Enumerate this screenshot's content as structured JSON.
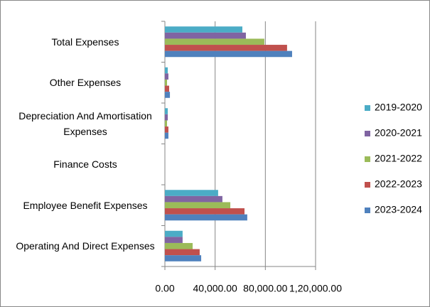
{
  "chart_data": {
    "type": "bar",
    "orientation": "horizontal",
    "categories": [
      "Total Expenses",
      "Other Expenses",
      "Depreciation And Amortisation Expenses",
      "Finance Costs",
      "Employee Benefit Expenses",
      "Operating And Direct Expenses"
    ],
    "series": [
      {
        "name": "2019-2020",
        "color": "#4bacc6",
        "values": [
          61700,
          2300,
          2300,
          0,
          42400,
          14100
        ]
      },
      {
        "name": "2020-2021",
        "color": "#8064a2",
        "values": [
          64500,
          2800,
          2300,
          0,
          45800,
          14100
        ]
      },
      {
        "name": "2021-2022",
        "color": "#9bbb59",
        "values": [
          79200,
          1700,
          1700,
          0,
          52100,
          22100
        ]
      },
      {
        "name": "2022-2023",
        "color": "#c0504d",
        "values": [
          97300,
          3400,
          2800,
          0,
          63400,
          27700
        ]
      },
      {
        "name": "2023-2024",
        "color": "#4f81bd",
        "values": [
          101300,
          4000,
          2800,
          0,
          65600,
          28900
        ]
      }
    ],
    "xlim": [
      0,
      120000
    ],
    "xticks": [
      {
        "value": 0,
        "label": "0.00"
      },
      {
        "value": 40000,
        "label": "40,000.00"
      },
      {
        "value": 80000,
        "label": "80,000.00"
      },
      {
        "value": 120000,
        "label": "1,20,000.00"
      }
    ],
    "grid": true,
    "legend": "right"
  }
}
